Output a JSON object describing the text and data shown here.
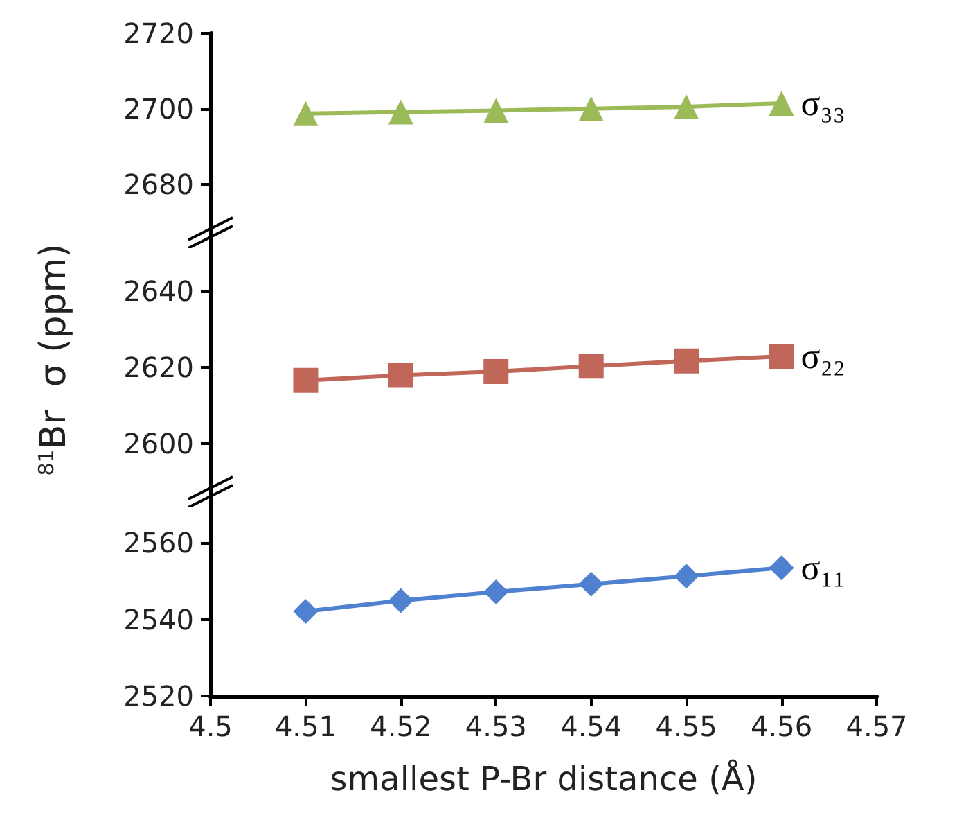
{
  "chart_data": [
    {
      "type": "line",
      "x": [
        4.51,
        4.52,
        4.53,
        4.54,
        4.55,
        4.56
      ],
      "xlim": [
        4.5,
        4.57
      ],
      "ylim": [
        2668,
        2720
      ],
      "yticks": [
        2680,
        2700,
        2720
      ],
      "tick_labels": "y",
      "marker": "triangle",
      "grid": false,
      "series": [
        {
          "name": "σ₃₃",
          "color": "#9bbb59",
          "values": [
            2698.8,
            2699.2,
            2699.6,
            2700.1,
            2700.6,
            2701.5
          ]
        }
      ]
    },
    {
      "type": "line",
      "ylabel": "$^{81}$Br  σ (ppm)",
      "x": [
        4.51,
        4.52,
        4.53,
        4.54,
        4.55,
        4.56
      ],
      "xlim": [
        4.5,
        4.57
      ],
      "ylim": [
        2588,
        2656
      ],
      "yticks": [
        2600,
        2620,
        2640
      ],
      "tick_labels": "y",
      "marker": "square",
      "grid": false,
      "series": [
        {
          "name": "σ₂₂",
          "color": "#c0675a",
          "values": [
            2616.6,
            2617.9,
            2618.9,
            2620.3,
            2621.7,
            2622.9
          ]
        }
      ]
    },
    {
      "type": "line",
      "xlabel": "smallest P-Br distance (Å)",
      "x": [
        4.51,
        4.52,
        4.53,
        4.54,
        4.55,
        4.56
      ],
      "xlim": [
        4.5,
        4.57
      ],
      "xticks": [
        4.5,
        4.51,
        4.52,
        4.53,
        4.54,
        4.55,
        4.56,
        4.57
      ],
      "ylim": [
        2520,
        2574
      ],
      "yticks": [
        2520,
        2540,
        2560
      ],
      "marker": "diamond",
      "grid": false,
      "series": [
        {
          "name": "σ₁₁",
          "color": "#4f81d0",
          "values": [
            2542.1,
            2544.9,
            2547.2,
            2549.2,
            2551.3,
            2553.5
          ]
        }
      ]
    }
  ]
}
